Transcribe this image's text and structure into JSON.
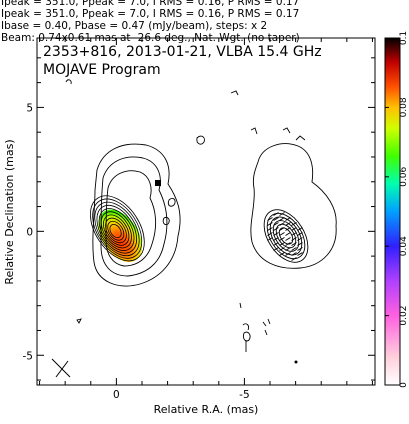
{
  "header": {
    "line1": "Ipeak = 351.0, Ppeak = 7.0, I RMS = 0.16, P RMS = 0.17",
    "line2": "Ibase = 0.40, Pbase = 0.47 (mJy/beam), steps: x 2",
    "line3": "Beam: 0.74x0.61 mas at -26.6 deg., Nat. Wgt. (no taper)"
  },
  "chart_data": {
    "type": "contour",
    "title": "2353+816, 2013-01-21, VLBA 15.4 GHz",
    "subtitle": "MOJAVE Program",
    "xlabel": "Relative R.A. (mas)",
    "ylabel": "Relative Declination (mas)",
    "x_ticks": [
      "0",
      "-5"
    ],
    "y_ticks": [
      "5",
      "0",
      "-5"
    ],
    "xlim": [
      3.1,
      -10.1
    ],
    "ylim": [
      -6.2,
      7.8
    ],
    "colorbar": {
      "ticks": [
        "0.1",
        "0.08",
        "0.06",
        "0.04",
        "0.02",
        "0"
      ],
      "range": [
        0,
        0.1
      ],
      "colors": [
        "#ffffff",
        "#ffc0cb",
        "#ff00ff",
        "#8000ff",
        "#0000ff",
        "#00c8ff",
        "#00ff80",
        "#80ff00",
        "#ffff00",
        "#ff8000",
        "#ff0000",
        "#800000",
        "#000000"
      ]
    },
    "stokes_I_contours": {
      "center": [
        0,
        0
      ],
      "levels_mjy_per_beam": [
        0.4,
        0.8,
        1.6,
        3.2,
        6.4,
        12.8,
        25.6,
        51.2,
        102.4,
        204.8
      ]
    },
    "panels": [
      "Stokes I with fractional polarization colour",
      "Polarized intensity contours"
    ],
    "beam": {
      "major_mas": 0.74,
      "minor_mas": 0.61,
      "pa_deg": -26.6
    }
  }
}
